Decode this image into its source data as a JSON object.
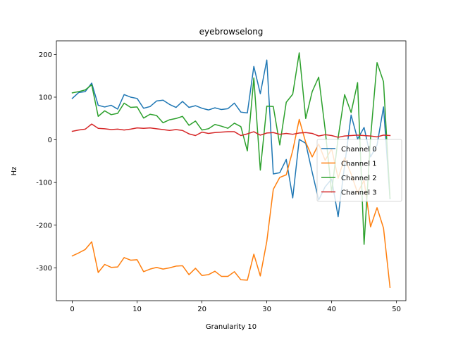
{
  "chart_data": {
    "type": "line",
    "title": "eyebrowselong",
    "xlabel": "Granularity 10",
    "ylabel": "Hz",
    "xlim": [
      -2.45,
      51.45
    ],
    "ylim": [
      -377,
      232
    ],
    "xticks": [
      0,
      10,
      20,
      30,
      40,
      50
    ],
    "yticks": [
      -300,
      -200,
      -100,
      0,
      100,
      200
    ],
    "grid": false,
    "legend_position": "center-right",
    "x": [
      0,
      1,
      2,
      3,
      4,
      5,
      6,
      7,
      8,
      9,
      10,
      11,
      12,
      13,
      14,
      15,
      16,
      17,
      18,
      19,
      20,
      21,
      22,
      23,
      24,
      25,
      26,
      27,
      28,
      29,
      30,
      31,
      32,
      33,
      34,
      35,
      36,
      37,
      38,
      39,
      40,
      41,
      42,
      43,
      44,
      45,
      46,
      47,
      48,
      49
    ],
    "series": [
      {
        "name": "Channel 0",
        "color": "#1f77b4",
        "values": [
          97,
          111,
          113,
          133,
          81,
          77,
          81,
          72,
          106,
          100,
          97,
          74,
          78,
          91,
          93,
          83,
          76,
          90,
          76,
          80,
          74,
          70,
          75,
          71,
          73,
          86,
          65,
          63,
          172,
          108,
          187,
          -80,
          -77,
          -46,
          -136,
          1,
          -8,
          -76,
          -141,
          -110,
          -92,
          -180,
          -60,
          58,
          2,
          29,
          -40,
          -12,
          77,
          -138
        ]
      },
      {
        "name": "Channel 1",
        "color": "#ff7f0e",
        "values": [
          -272,
          -265,
          -257,
          -239,
          -311,
          -292,
          -299,
          -298,
          -276,
          -282,
          -281,
          -309,
          -303,
          -299,
          -303,
          -300,
          -296,
          -295,
          -316,
          -301,
          -318,
          -316,
          -308,
          -320,
          -320,
          -309,
          -328,
          -329,
          -268,
          -319,
          -238,
          -116,
          -88,
          -82,
          -25,
          48,
          -6,
          -40,
          -10,
          -48,
          -21,
          -90,
          -42,
          -80,
          -124,
          -95,
          -204,
          -159,
          -207,
          -346
        ]
      },
      {
        "name": "Channel 2",
        "color": "#2ca02c",
        "values": [
          110,
          113,
          117,
          129,
          55,
          68,
          59,
          62,
          86,
          76,
          77,
          51,
          60,
          57,
          40,
          47,
          50,
          55,
          34,
          44,
          23,
          26,
          36,
          32,
          27,
          39,
          31,
          -26,
          145,
          -71,
          79,
          78,
          -12,
          88,
          107,
          204,
          50,
          113,
          147,
          24,
          -123,
          5,
          106,
          64,
          134,
          -245,
          5,
          181,
          136,
          -137
        ]
      },
      {
        "name": "Channel 3",
        "color": "#d62728",
        "values": [
          20,
          23,
          25,
          37,
          27,
          26,
          24,
          25,
          23,
          25,
          28,
          27,
          28,
          26,
          24,
          22,
          24,
          22,
          14,
          10,
          18,
          15,
          17,
          18,
          19,
          19,
          10,
          14,
          19,
          11,
          16,
          17,
          13,
          15,
          13,
          16,
          17,
          15,
          9,
          12,
          10,
          6,
          9,
          10,
          11,
          10,
          9,
          7,
          11,
          10
        ]
      }
    ]
  }
}
